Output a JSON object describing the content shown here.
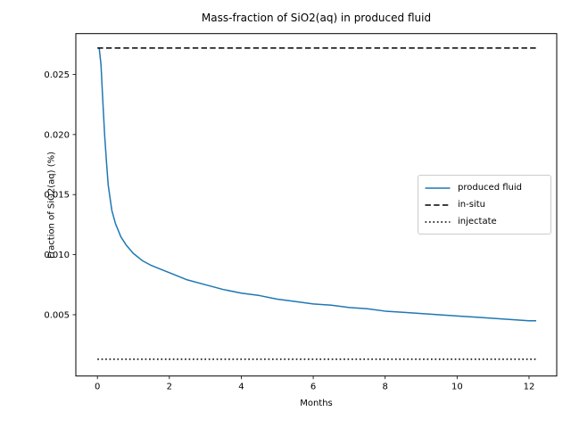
{
  "chart_data": {
    "type": "line",
    "title": "Mass-fraction of SiO2(aq) in produced fluid",
    "xlabel": "Months",
    "ylabel": "Fraction of SiO2(aq) (%)",
    "xlim": [
      -0.6,
      12.77
    ],
    "ylim": [
      -0.0001,
      0.0284
    ],
    "grid": false,
    "xticks": {
      "values": [
        0,
        2,
        4,
        6,
        8,
        10,
        12
      ],
      "labels": [
        "0",
        "2",
        "4",
        "6",
        "8",
        "10",
        "12"
      ]
    },
    "yticks": {
      "values": [
        0.005,
        0.01,
        0.015,
        0.02,
        0.025
      ],
      "labels": [
        "0.005",
        "0.010",
        "0.015",
        "0.020",
        "0.025"
      ]
    },
    "legend": {
      "position": "center right",
      "entries": [
        "produced fluid",
        "in-situ",
        "injectate"
      ]
    },
    "series": [
      {
        "name": "produced fluid",
        "color": "#1f77b4",
        "style": "solid",
        "x": [
          0.05,
          0.1,
          0.15,
          0.2,
          0.25,
          0.3,
          0.4,
          0.5,
          0.65,
          0.8,
          1.0,
          1.25,
          1.5,
          1.75,
          2.0,
          2.5,
          3.0,
          3.5,
          4.0,
          4.5,
          5.0,
          5.5,
          6.0,
          6.5,
          7.0,
          7.5,
          8.0,
          8.5,
          9.0,
          9.5,
          10.0,
          10.5,
          11.0,
          11.5,
          12.0,
          12.2
        ],
        "y": [
          0.0272,
          0.0258,
          0.0228,
          0.02,
          0.0178,
          0.0158,
          0.0137,
          0.0126,
          0.0115,
          0.0108,
          0.0101,
          0.0095,
          0.0091,
          0.0088,
          0.0085,
          0.0079,
          0.0075,
          0.0071,
          0.0068,
          0.0066,
          0.0063,
          0.0061,
          0.0059,
          0.0058,
          0.0056,
          0.0055,
          0.0053,
          0.0052,
          0.0051,
          0.005,
          0.0049,
          0.0048,
          0.0047,
          0.0046,
          0.0045,
          0.0045
        ]
      },
      {
        "name": "in-situ",
        "color": "#000000",
        "style": "dashed",
        "x": [
          0.0,
          12.2
        ],
        "y": [
          0.0272,
          0.0272
        ]
      },
      {
        "name": "injectate",
        "color": "#000000",
        "style": "dotted",
        "x": [
          0.0,
          12.2
        ],
        "y": [
          0.0013,
          0.0013
        ]
      }
    ]
  }
}
